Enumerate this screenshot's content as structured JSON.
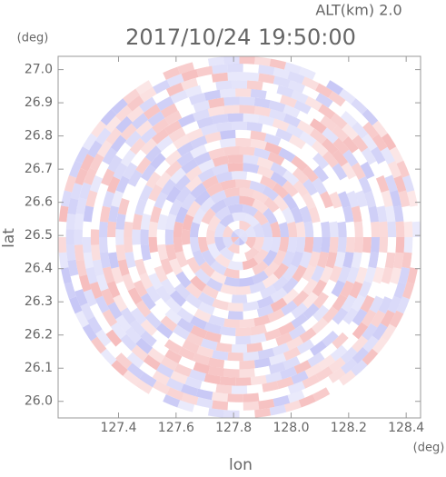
{
  "chart_data": {
    "type": "radar-map",
    "title": "2017/10/24 19:50:00",
    "subtitle": "ALT(km) 2.0",
    "x_label": "lon",
    "x_unit": "(deg)",
    "y_label": "lat",
    "y_unit": "(deg)",
    "xlim": [
      127.19,
      128.45
    ],
    "xticks": [
      127.4,
      127.6,
      127.8,
      {
        "value": 128,
        "label": "128.0"
      },
      128.2,
      128.4
    ],
    "ylim": [
      25.95,
      27.04
    ],
    "yticks": [
      {
        "value": 26,
        "label": "26.0"
      },
      26.1,
      26.2,
      26.3,
      26.4,
      26.5,
      26.6,
      26.7,
      26.8,
      26.9,
      {
        "value": 27,
        "label": "27.0"
      }
    ]
  }
}
